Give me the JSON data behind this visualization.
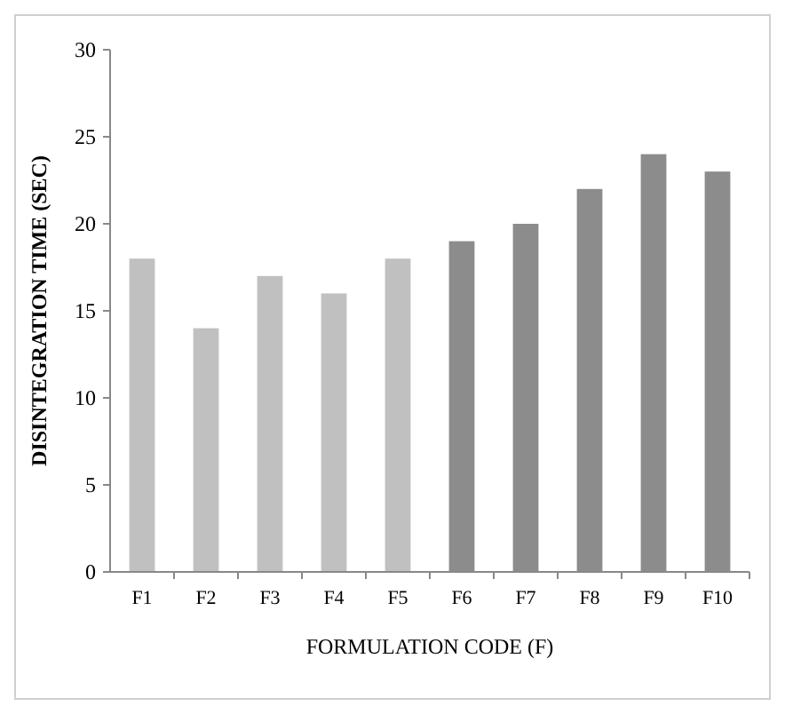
{
  "chart_data": {
    "type": "bar",
    "xlabel": "FORMULATION CODE (F)",
    "ylabel": "DISINTEGRATION TIME (SEC)",
    "categories": [
      "F1",
      "F2",
      "F3",
      "F4",
      "F5",
      "F6",
      "F7",
      "F8",
      "F9",
      "F10"
    ],
    "values": [
      18,
      14,
      17,
      16,
      18,
      19,
      20,
      22,
      24,
      23
    ],
    "colors": [
      "#c0c0c0",
      "#c0c0c0",
      "#c0c0c0",
      "#c0c0c0",
      "#c0c0c0",
      "#8c8c8c",
      "#8c8c8c",
      "#8c8c8c",
      "#8c8c8c",
      "#8c8c8c"
    ],
    "ylim": [
      0,
      30
    ],
    "yticks": [
      0,
      5,
      10,
      15,
      20,
      25,
      30
    ]
  }
}
